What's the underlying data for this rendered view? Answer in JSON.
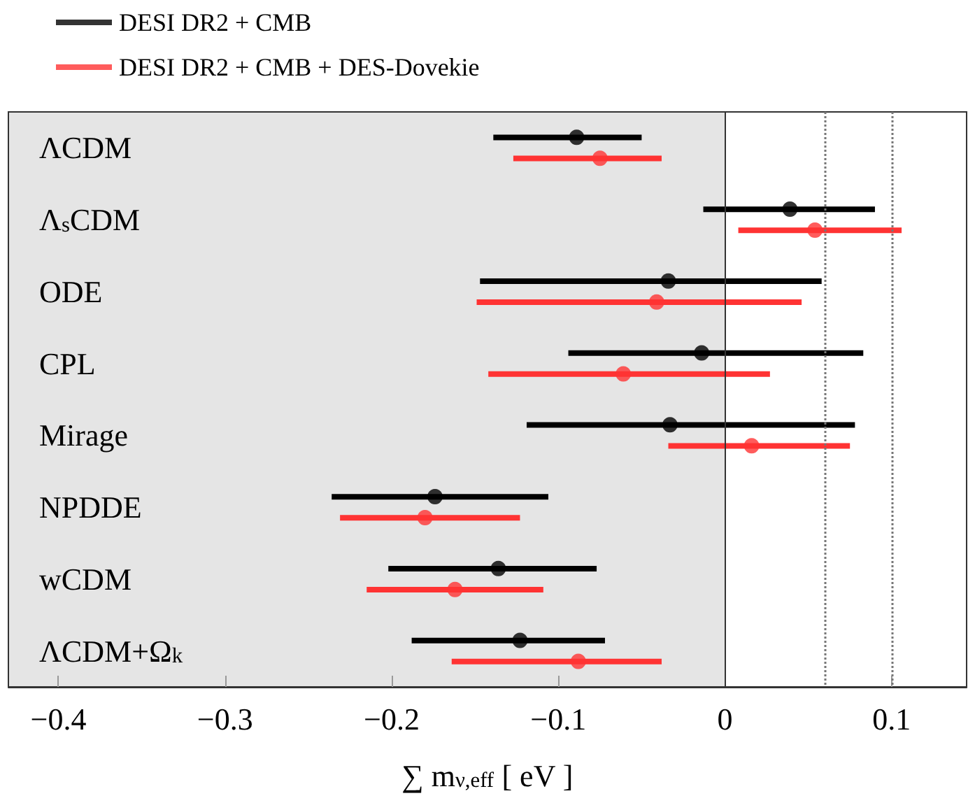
{
  "chart_data": {
    "type": "scatter",
    "orientation": "horizontal",
    "xlabel": "∑ m$_{ν,eff}$ [ eV ]",
    "categories": [
      "ΛCDM",
      "Λ$_{s}$CDM",
      "ODE",
      "CPL",
      "Mirage",
      "NPDDE",
      "wCDM",
      "ΛCDM+Ω$_{k}$"
    ],
    "series": [
      {
        "name": "DESI DR2 + CMB",
        "color": "#000000",
        "values": [
          -0.089,
          0.039,
          -0.034,
          -0.014,
          -0.033,
          -0.174,
          -0.136,
          -0.123
        ],
        "errors": [
          [
            -0.139,
            -0.05
          ],
          [
            -0.013,
            0.09
          ],
          [
            -0.147,
            0.058
          ],
          [
            -0.094,
            0.083
          ],
          [
            -0.119,
            0.078
          ],
          [
            -0.236,
            -0.106
          ],
          [
            -0.202,
            -0.077
          ],
          [
            -0.188,
            -0.072
          ]
        ]
      },
      {
        "name": "DESI DR2 + CMB + DES-Dovekie",
        "color": "#ff3333",
        "values": [
          -0.075,
          0.054,
          -0.041,
          -0.061,
          0.016,
          -0.18,
          -0.162,
          -0.088
        ],
        "errors": [
          [
            -0.127,
            -0.038
          ],
          [
            0.008,
            0.106
          ],
          [
            -0.149,
            0.046
          ],
          [
            -0.142,
            0.027
          ],
          [
            -0.034,
            0.075
          ],
          [
            -0.231,
            -0.123
          ],
          [
            -0.215,
            -0.109
          ],
          [
            -0.164,
            -0.038
          ]
        ]
      }
    ],
    "xlim": [
      -0.43,
      0.145
    ],
    "xticks": [
      {
        "value": -0.4,
        "label": "−0.4"
      },
      {
        "value": -0.3,
        "label": "−0.3"
      },
      {
        "value": -0.2,
        "label": "−0.2"
      },
      {
        "value": -0.1,
        "label": "−0.1"
      },
      0,
      0.1
    ],
    "bands": [
      {
        "axis": "x",
        "from": -0.43,
        "to": 0,
        "color": "#e5e5e5"
      }
    ],
    "ref_lines": [
      {
        "axis": "x",
        "value": 0.06,
        "color": "#777777",
        "line_style": "dotted"
      },
      {
        "axis": "x",
        "value": 0.1,
        "color": "#777777",
        "line_style": "dotted"
      }
    ],
    "marker": "circle",
    "legend": "top left",
    "grid": false
  }
}
